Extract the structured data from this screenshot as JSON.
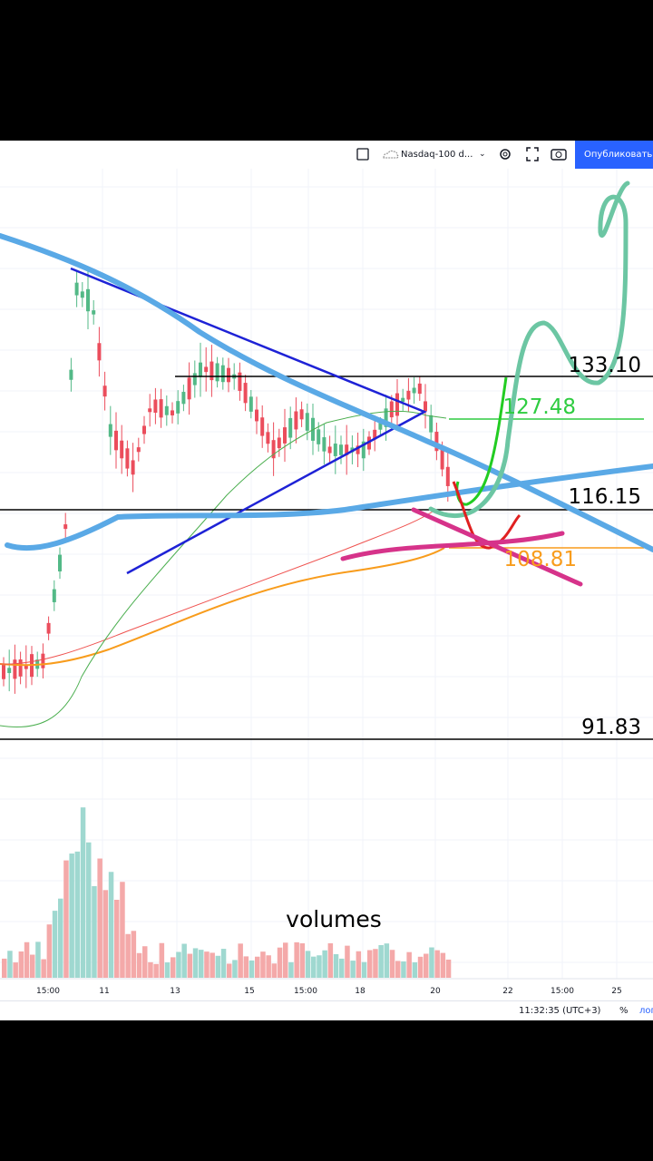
{
  "toolbar": {
    "symbol": "Nasdaq-100 d...",
    "publish": "Опубликовать"
  },
  "price_labels": [
    "133.10",
    "127.48",
    "116.15",
    "108.81",
    "91.83"
  ],
  "annotation": "volumes",
  "time_axis": [
    "15:00",
    "11",
    "13",
    "15",
    "15:00",
    "18",
    "20",
    "22",
    "15:00",
    "25"
  ],
  "status": {
    "clock": "11:32:35 (UTC+3)",
    "percent": "%",
    "log": "лог"
  }
}
